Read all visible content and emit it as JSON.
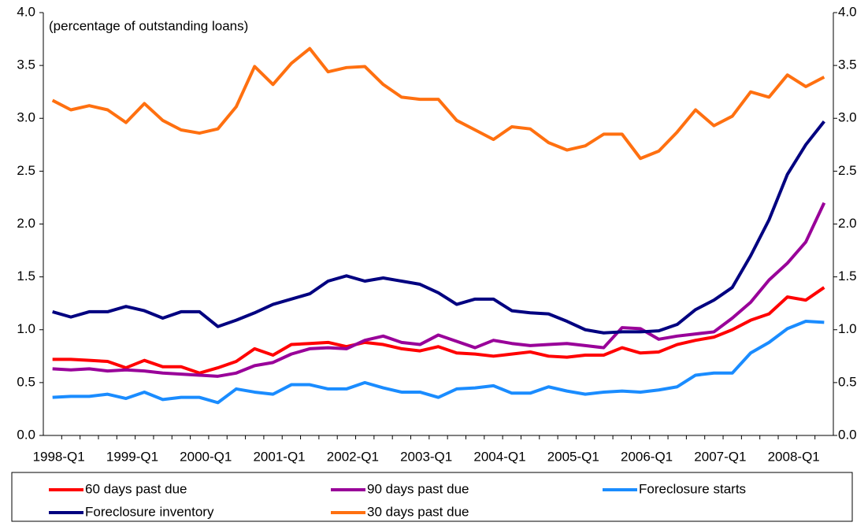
{
  "chart_data": {
    "type": "line",
    "annotation": "(percentage of outstanding loans)",
    "categories": [
      "1998-Q1",
      null,
      null,
      null,
      "1999-Q1",
      null,
      null,
      null,
      "2000-Q1",
      null,
      null,
      null,
      "2001-Q1",
      null,
      null,
      null,
      "2002-Q1",
      null,
      null,
      null,
      "2003-Q1",
      null,
      null,
      null,
      "2004-Q1",
      null,
      null,
      null,
      "2005-Q1",
      null,
      null,
      null,
      "2006-Q1",
      null,
      null,
      null,
      "2007-Q1",
      null,
      null,
      null,
      "2008-Q1",
      null,
      null
    ],
    "series": [
      {
        "name": "60 days past due",
        "color": "#ff0000",
        "values": [
          0.72,
          0.72,
          0.71,
          0.7,
          0.64,
          0.71,
          0.65,
          0.65,
          0.59,
          0.64,
          0.7,
          0.82,
          0.76,
          0.86,
          0.87,
          0.88,
          0.84,
          0.88,
          0.86,
          0.82,
          0.8,
          0.84,
          0.78,
          0.77,
          0.75,
          0.77,
          0.79,
          0.75,
          0.74,
          0.76,
          0.76,
          0.83,
          0.78,
          0.79,
          0.86,
          0.9,
          0.93,
          1.0,
          1.09,
          1.15,
          1.31,
          1.28,
          1.4
        ]
      },
      {
        "name": "90 days past due",
        "color": "#990099",
        "values": [
          0.63,
          0.62,
          0.63,
          0.61,
          0.62,
          0.61,
          0.59,
          0.58,
          0.57,
          0.56,
          0.59,
          0.66,
          0.69,
          0.77,
          0.82,
          0.83,
          0.82,
          0.9,
          0.94,
          0.88,
          0.86,
          0.95,
          0.89,
          0.83,
          0.9,
          0.87,
          0.85,
          0.86,
          0.87,
          0.85,
          0.83,
          1.02,
          1.01,
          0.91,
          0.94,
          0.96,
          0.98,
          1.11,
          1.26,
          1.47,
          1.63,
          1.83,
          2.2
        ]
      },
      {
        "name": "Foreclosure starts",
        "color": "#1a8cff",
        "values": [
          0.36,
          0.37,
          0.37,
          0.39,
          0.35,
          0.41,
          0.34,
          0.36,
          0.36,
          0.31,
          0.44,
          0.41,
          0.39,
          0.48,
          0.48,
          0.44,
          0.44,
          0.5,
          0.45,
          0.41,
          0.41,
          0.36,
          0.44,
          0.45,
          0.47,
          0.4,
          0.4,
          0.46,
          0.42,
          0.39,
          0.41,
          0.42,
          0.41,
          0.43,
          0.46,
          0.57,
          0.59,
          0.59,
          0.78,
          0.88,
          1.01,
          1.08,
          1.07
        ]
      },
      {
        "name": "Foreclosure inventory",
        "color": "#000080",
        "values": [
          1.17,
          1.12,
          1.17,
          1.17,
          1.22,
          1.18,
          1.11,
          1.17,
          1.17,
          1.03,
          1.09,
          1.16,
          1.24,
          1.29,
          1.34,
          1.46,
          1.51,
          1.46,
          1.49,
          1.46,
          1.43,
          1.35,
          1.24,
          1.29,
          1.29,
          1.18,
          1.16,
          1.15,
          1.08,
          1.0,
          0.97,
          0.98,
          0.98,
          0.99,
          1.05,
          1.19,
          1.28,
          1.4,
          1.7,
          2.04,
          2.47,
          2.75,
          2.97
        ]
      },
      {
        "name": "30 days past due",
        "color": "#ff7010",
        "values": [
          3.17,
          3.08,
          3.12,
          3.08,
          2.96,
          3.14,
          2.98,
          2.89,
          2.86,
          2.9,
          3.11,
          3.49,
          3.32,
          3.52,
          3.66,
          3.44,
          3.48,
          3.49,
          3.32,
          3.2,
          3.18,
          3.18,
          2.98,
          2.89,
          2.8,
          2.92,
          2.9,
          2.77,
          2.7,
          2.74,
          2.85,
          2.85,
          2.62,
          2.69,
          2.87,
          3.08,
          2.93,
          3.02,
          3.25,
          3.2,
          3.41,
          3.3,
          3.39
        ]
      }
    ],
    "ylim": [
      0,
      4
    ],
    "yticks": [
      {
        "value": 0,
        "label": "0.0"
      },
      0.5,
      {
        "value": 1,
        "label": "1.0"
      },
      1.5,
      {
        "value": 2,
        "label": "2.0"
      },
      2.5,
      {
        "value": 3,
        "label": "3.0"
      },
      3.5,
      {
        "value": 4,
        "label": "4.0"
      }
    ],
    "y2lim": [
      0,
      4
    ],
    "y2ticks": [
      {
        "value": 0,
        "label": "0.0"
      },
      0.5,
      {
        "value": 1,
        "label": "1.0"
      },
      1.5,
      {
        "value": 2,
        "label": "2.0"
      },
      2.5,
      {
        "value": 3,
        "label": "3.0"
      },
      3.5,
      {
        "value": 4,
        "label": "4.0"
      }
    ],
    "grid": false,
    "legend": "bottom"
  }
}
